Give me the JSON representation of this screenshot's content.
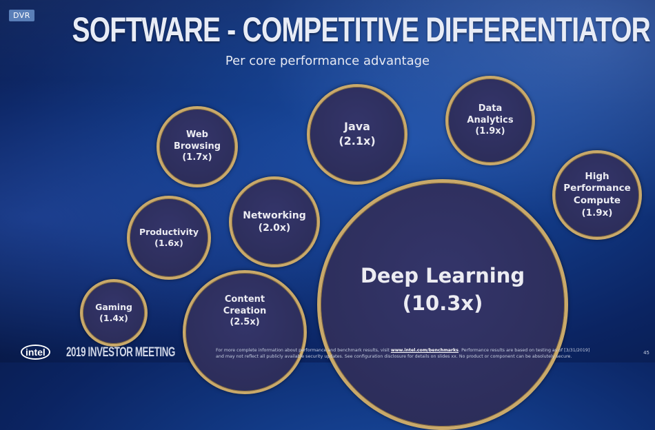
{
  "badge": "DVR",
  "title": "SOFTWARE - COMPETITIVE DIFFERENTIATOR",
  "subtitle": "Per core performance advantage",
  "bubbles": [
    {
      "label": "Web\nBrowsing",
      "value": "(1.7x)"
    },
    {
      "label": "Java",
      "value": "(2.1x)"
    },
    {
      "label": "Data\nAnalytics",
      "value": "(1.9x)"
    },
    {
      "label": "High\nPerformance\nCompute",
      "value": "(1.9x)"
    },
    {
      "label": "Productivity",
      "value": "(1.6x)"
    },
    {
      "label": "Networking",
      "value": "(2.0x)"
    },
    {
      "label": "Gaming",
      "value": "(1.4x)"
    },
    {
      "label": "Content\nCreation",
      "value": "(2.5x)"
    },
    {
      "label": "Deep Learning",
      "value": "(10.3x)"
    }
  ],
  "footer": {
    "logo": "intel",
    "event": "2019 INVESTOR MEETING",
    "disclaimer_1a": "For more complete information about performance and benchmark results, visit ",
    "disclaimer_link": "www.intel.com/benchmarks",
    "disclaimer_1b": ". Performance results are based on testing as of [3/31/2019]",
    "disclaimer_2": "and may not reflect all publicly available security updates.  See configuration disclosure for details on slides xx.  No product or component can be absolutely secure.",
    "page": "45"
  },
  "colors": {
    "ring": "#c9a96a",
    "bubble_fill": "#2e2f5c",
    "background": "#123a86"
  }
}
